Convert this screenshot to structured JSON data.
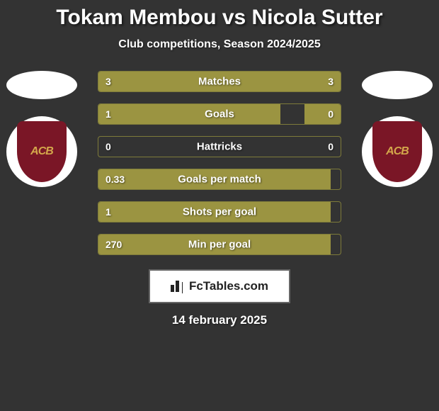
{
  "header": {
    "title": "Tokam Membou vs Nicola Sutter",
    "subtitle": "Club competitions, Season 2024/2025"
  },
  "players": {
    "left": {
      "name": "Tokam Membou",
      "badge_text": "ACB",
      "badge_bg": "#7a1626",
      "badge_fg": "#d4a84b"
    },
    "right": {
      "name": "Nicola Sutter",
      "badge_text": "ACB",
      "badge_bg": "#7a1626",
      "badge_fg": "#d4a84b"
    }
  },
  "chart": {
    "bar_fill_color": "#9b9441",
    "bar_empty_color": "#333333",
    "bar_border_color": "#7e7b3a",
    "text_color": "#ffffff",
    "label_fontsize": 15,
    "value_fontsize": 14,
    "rows": [
      {
        "label": "Matches",
        "left_value": "3",
        "right_value": "3",
        "left_pct": 50,
        "right_pct": 50
      },
      {
        "label": "Goals",
        "left_value": "1",
        "right_value": "0",
        "left_pct": 75,
        "right_pct": 15
      },
      {
        "label": "Hattricks",
        "left_value": "0",
        "right_value": "0",
        "left_pct": 0,
        "right_pct": 0
      },
      {
        "label": "Goals per match",
        "left_value": "0.33",
        "right_value": "",
        "left_pct": 96,
        "right_pct": 0
      },
      {
        "label": "Shots per goal",
        "left_value": "1",
        "right_value": "",
        "left_pct": 96,
        "right_pct": 0
      },
      {
        "label": "Min per goal",
        "left_value": "270",
        "right_value": "",
        "left_pct": 96,
        "right_pct": 0
      }
    ]
  },
  "footer": {
    "brand": "FcTables.com",
    "date": "14 february 2025"
  },
  "colors": {
    "page_bg": "#333333",
    "title_color": "#ffffff"
  }
}
